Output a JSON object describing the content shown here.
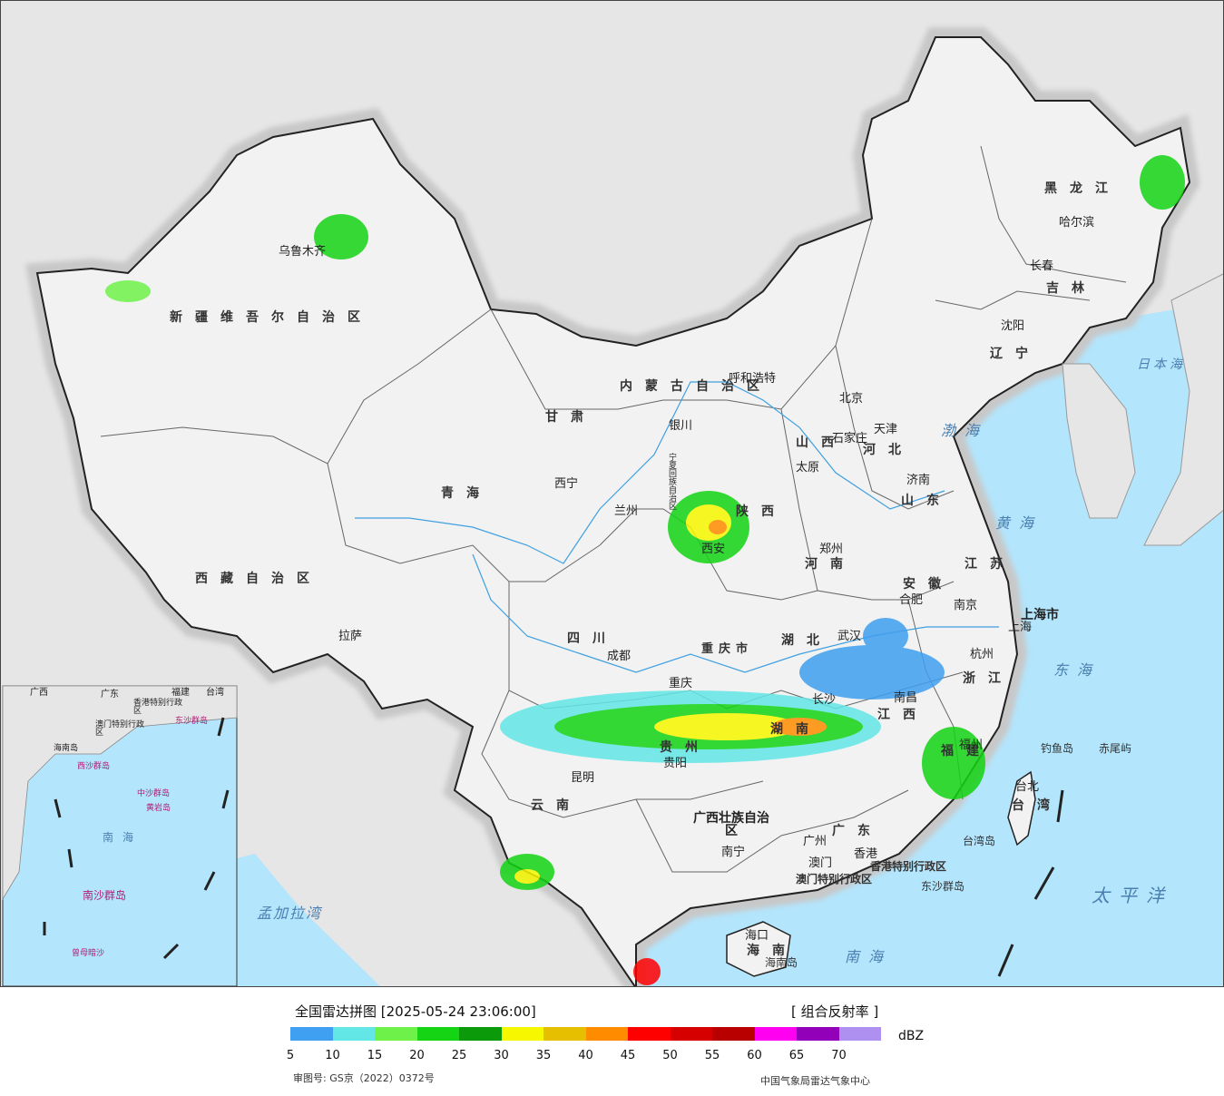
{
  "legend": {
    "title": "全国雷达拼图 [2025-05-24 23:06:00]",
    "product": "[ 组合反射率 ]",
    "unit": "dBZ",
    "ticks": [
      "5",
      "10",
      "15",
      "20",
      "25",
      "30",
      "35",
      "40",
      "45",
      "50",
      "55",
      "60",
      "65",
      "70"
    ],
    "colors": [
      "#3f9ff0",
      "#63e6e6",
      "#6ef24a",
      "#14d414",
      "#0a9a0a",
      "#f7f700",
      "#e6bf00",
      "#ff8c00",
      "#ff0000",
      "#d60000",
      "#b90000",
      "#ff00f0",
      "#9300b9",
      "#ad90f0"
    ],
    "approval": "审图号: GS京（2022）0372号",
    "center": "中国气象局雷达气象中心"
  },
  "colors": {
    "sea": "#b3e5fc",
    "land": "#f2f2f2",
    "foreign": "#e6e6e6",
    "border": "#222222"
  },
  "provinces": [
    "新疆维吾尔自治区",
    "西藏自治区",
    "青海",
    "甘肃",
    "内蒙古自治区",
    "黑龙江",
    "吉林",
    "辽宁",
    "河北",
    "山西",
    "陕西",
    "宁夏回族自治区",
    "四川",
    "重庆市",
    "湖北",
    "河南",
    "山东",
    "安徽",
    "江苏",
    "上海市",
    "浙江",
    "江西",
    "湖南",
    "贵州",
    "云南",
    "广西壮族自治区",
    "广东",
    "福建",
    "台湾",
    "海南"
  ],
  "cities": [
    "乌鲁木齐",
    "拉萨",
    "西宁",
    "兰州",
    "银川",
    "呼和浩特",
    "北京",
    "天津",
    "石家庄",
    "太原",
    "济南",
    "郑州",
    "西安",
    "成都",
    "重庆",
    "武汉",
    "合肥",
    "南京",
    "上海",
    "杭州",
    "长沙",
    "南昌",
    "福州",
    "台北",
    "贵阳",
    "昆明",
    "南宁",
    "广州",
    "香港",
    "澳门",
    "海口",
    "哈尔滨",
    "长春",
    "沈阳"
  ],
  "seas": [
    "日本海",
    "渤海",
    "黄海",
    "东海",
    "太平洋",
    "南海",
    "孟加拉湾"
  ],
  "islands": [
    "钓鱼岛",
    "赤尾屿",
    "台湾岛",
    "东沙群岛",
    "海南岛"
  ],
  "special_regions": [
    "香港特别行政区",
    "澳门特别行政区"
  ],
  "inset_labels": [
    "广西",
    "广东",
    "福建",
    "台湾",
    "香港特别行政区",
    "澳门特别行政区",
    "东沙群岛",
    "海南岛",
    "西沙群岛",
    "中沙群岛",
    "黄岩岛",
    "南海",
    "南沙群岛",
    "曾母暗沙"
  ]
}
